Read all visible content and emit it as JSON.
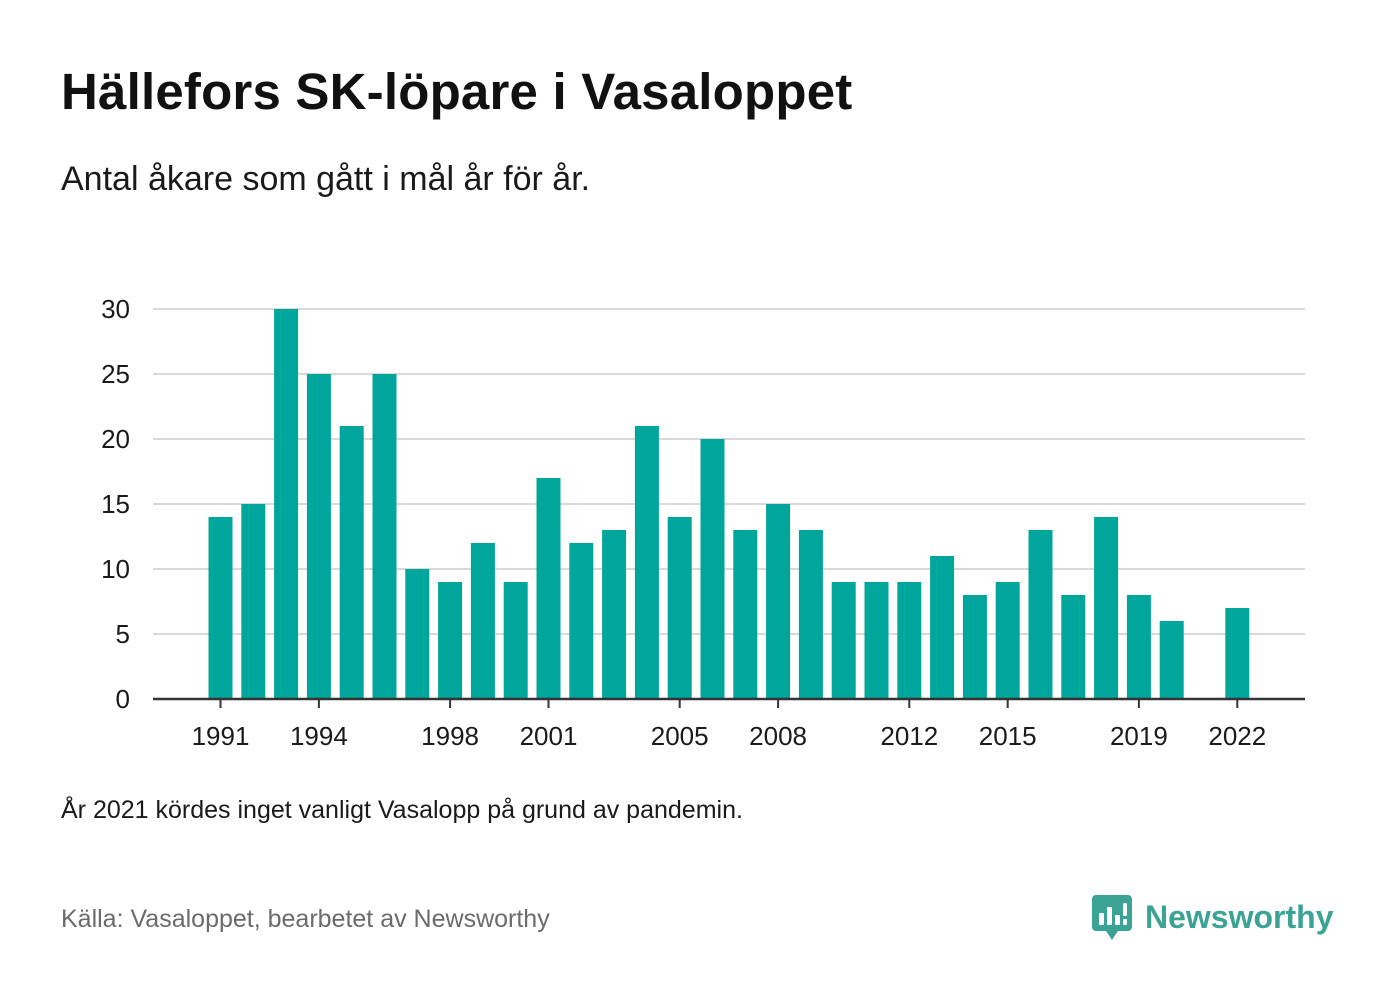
{
  "header": {
    "title": "Hällefors SK-löpare i Vasaloppet",
    "subtitle": "Antal åkare som gått i mål år för år."
  },
  "footer": {
    "note": "År 2021 kördes inget vanligt Vasalopp på grund av pandemin.",
    "source": "Källa: Vasaloppet, bearbetet av Newsworthy",
    "brand": "Newsworthy",
    "brand_icon": "newsworthy-logo-icon"
  },
  "colors": {
    "bar": "#00a59b",
    "grid": "#d9d9d9",
    "axis": "#333333",
    "brand": "#3aa394"
  },
  "chart_data": {
    "type": "bar",
    "title": "Hällefors SK-löpare i Vasaloppet",
    "subtitle": "Antal åkare som gått i mål år för år.",
    "xlabel": "",
    "ylabel": "",
    "categories": [
      1991,
      1992,
      1993,
      1994,
      1995,
      1996,
      1997,
      1998,
      1999,
      2000,
      2001,
      2002,
      2003,
      2004,
      2005,
      2006,
      2007,
      2008,
      2009,
      2010,
      2011,
      2012,
      2013,
      2014,
      2015,
      2016,
      2017,
      2018,
      2019,
      2020,
      2021,
      2022
    ],
    "values": [
      14,
      15,
      30,
      25,
      21,
      25,
      10,
      9,
      12,
      9,
      17,
      12,
      13,
      21,
      14,
      20,
      13,
      15,
      13,
      9,
      9,
      9,
      11,
      8,
      9,
      13,
      8,
      14,
      8,
      6,
      null,
      7
    ],
    "x_tick_labels": [
      "1991",
      "1994",
      "1998",
      "2001",
      "2005",
      "2008",
      "2012",
      "2015",
      "2019",
      "2022"
    ],
    "y_ticks": [
      0,
      5,
      10,
      15,
      20,
      25,
      30
    ],
    "ylim": [
      0,
      30
    ],
    "grid": true,
    "legend": "none"
  }
}
